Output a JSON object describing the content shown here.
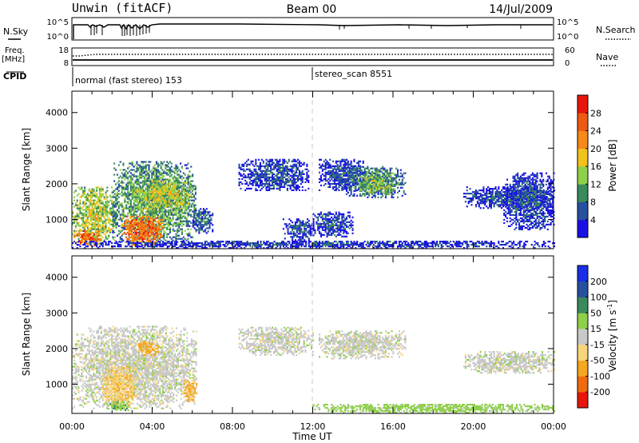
{
  "header": {
    "station": "Unwin (fitACF)",
    "beam": "Beam 00",
    "date": "14/Jul/2009"
  },
  "top_panels": {
    "nsky_label": "N.Sky",
    "nsky_ticks": [
      "10^5",
      "10^0"
    ],
    "nsearch_label": "N.Search",
    "nsearch_ticks": [
      "10^5",
      "10^0"
    ],
    "freq_label": "Freq.",
    "freq_unit": "[MHz]",
    "freq_ticks": [
      "18",
      "8"
    ],
    "nave_label": "Nave",
    "nave_ticks": [
      "60",
      "0"
    ],
    "cpid_label": "CPID",
    "cpid_segments": [
      {
        "start_hour": 0.0,
        "text": "normal (fast stereo) 153"
      },
      {
        "start_hour": 12.0,
        "text": "stereo_scan 8551"
      }
    ]
  },
  "colors": {
    "power_scale": [
      "#1a10e6",
      "#27509e",
      "#3a8a5c",
      "#8fd04a",
      "#f2c21c",
      "#f58a18",
      "#ef5a12",
      "#e8160c"
    ],
    "velocity_scale": [
      "#e8160c",
      "#f06a10",
      "#f5a623",
      "#f7d67a",
      "#c8c8c8",
      "#8fd04a",
      "#3a8a5c",
      "#27509e",
      "#1a2ee6"
    ]
  },
  "chart_data": [
    {
      "type": "heatmap",
      "panel": "power",
      "xlabel": "",
      "ylabel": "Slant Range [km]",
      "x_ticks": [
        "00:00",
        "04:00",
        "08:00",
        "12:00",
        "16:00",
        "20:00",
        "00:00"
      ],
      "xlim": [
        0,
        24
      ],
      "y_ticks": [
        "1000",
        "2000",
        "3000",
        "4000"
      ],
      "ylim": [
        180,
        4600
      ],
      "colorbar_label": "Power [dB]",
      "colorbar_ticks": [
        "4",
        "8",
        "12",
        "16",
        "20",
        "24",
        "28"
      ],
      "colorbar_range": [
        0,
        32
      ],
      "regions": [
        {
          "t": [
            0.0,
            2.2
          ],
          "r": [
            300,
            1900
          ],
          "level": 16
        },
        {
          "t": [
            0.1,
            1.4
          ],
          "r": [
            250,
            700
          ],
          "level": 26
        },
        {
          "t": [
            2.0,
            6.2
          ],
          "r": [
            300,
            2600
          ],
          "level": 12
        },
        {
          "t": [
            2.5,
            4.5
          ],
          "r": [
            250,
            1100
          ],
          "level": 26
        },
        {
          "t": [
            3.0,
            6.0
          ],
          "r": [
            1200,
            2100
          ],
          "level": 16
        },
        {
          "t": [
            6.0,
            7.0
          ],
          "r": [
            600,
            1300
          ],
          "level": 8
        },
        {
          "t": [
            8.3,
            11.8
          ],
          "r": [
            1800,
            2700
          ],
          "level": 6
        },
        {
          "t": [
            10.5,
            12.0
          ],
          "r": [
            400,
            1000
          ],
          "level": 6
        },
        {
          "t": [
            12.0,
            14.0
          ],
          "r": [
            500,
            1200
          ],
          "level": 6
        },
        {
          "t": [
            12.3,
            14.5
          ],
          "r": [
            1800,
            2700
          ],
          "level": 6
        },
        {
          "t": [
            13.5,
            16.6
          ],
          "r": [
            1600,
            2500
          ],
          "level": 10
        },
        {
          "t": [
            14.3,
            16.0
          ],
          "r": [
            1700,
            2200
          ],
          "level": 14
        },
        {
          "t": [
            19.5,
            24.0
          ],
          "r": [
            1300,
            1900
          ],
          "level": 6
        },
        {
          "t": [
            21.5,
            24.0
          ],
          "r": [
            700,
            2300
          ],
          "level": 6
        },
        {
          "t": [
            0.0,
            24.0
          ],
          "r": [
            180,
            400
          ],
          "level": 5
        }
      ]
    },
    {
      "type": "heatmap",
      "panel": "velocity",
      "xlabel": "Time UT",
      "ylabel": "Slant Range [km]",
      "x_ticks": [
        "00:00",
        "04:00",
        "08:00",
        "12:00",
        "16:00",
        "20:00",
        "00:00"
      ],
      "xlim": [
        0,
        24
      ],
      "y_ticks": [
        "1000",
        "2000",
        "3000",
        "4000"
      ],
      "ylim": [
        180,
        4600
      ],
      "colorbar_label": "Velocity [m s^-1]",
      "colorbar_ticks": [
        "-200",
        "-100",
        "-50",
        "-15",
        "15",
        "50",
        "100",
        "200"
      ],
      "colorbar_range": [
        -250,
        250
      ],
      "regions": [
        {
          "t": [
            0.0,
            6.2
          ],
          "r": [
            300,
            2600
          ],
          "velocity": 0
        },
        {
          "t": [
            1.5,
            3.2
          ],
          "r": [
            400,
            1500
          ],
          "velocity": -40
        },
        {
          "t": [
            5.5,
            6.2
          ],
          "r": [
            500,
            1100
          ],
          "velocity": -60
        },
        {
          "t": [
            1.8,
            2.8
          ],
          "r": [
            250,
            500
          ],
          "velocity": 40
        },
        {
          "t": [
            3.3,
            4.3
          ],
          "r": [
            1800,
            2200
          ],
          "velocity": -60
        },
        {
          "t": [
            8.3,
            12.0
          ],
          "r": [
            1800,
            2600
          ],
          "velocity": 0
        },
        {
          "t": [
            12.3,
            16.6
          ],
          "r": [
            1700,
            2500
          ],
          "velocity": 0
        },
        {
          "t": [
            19.5,
            24.0
          ],
          "r": [
            1300,
            1900
          ],
          "velocity": 0
        },
        {
          "t": [
            12.0,
            24.0
          ],
          "r": [
            180,
            450
          ],
          "velocity": 30
        }
      ]
    }
  ]
}
